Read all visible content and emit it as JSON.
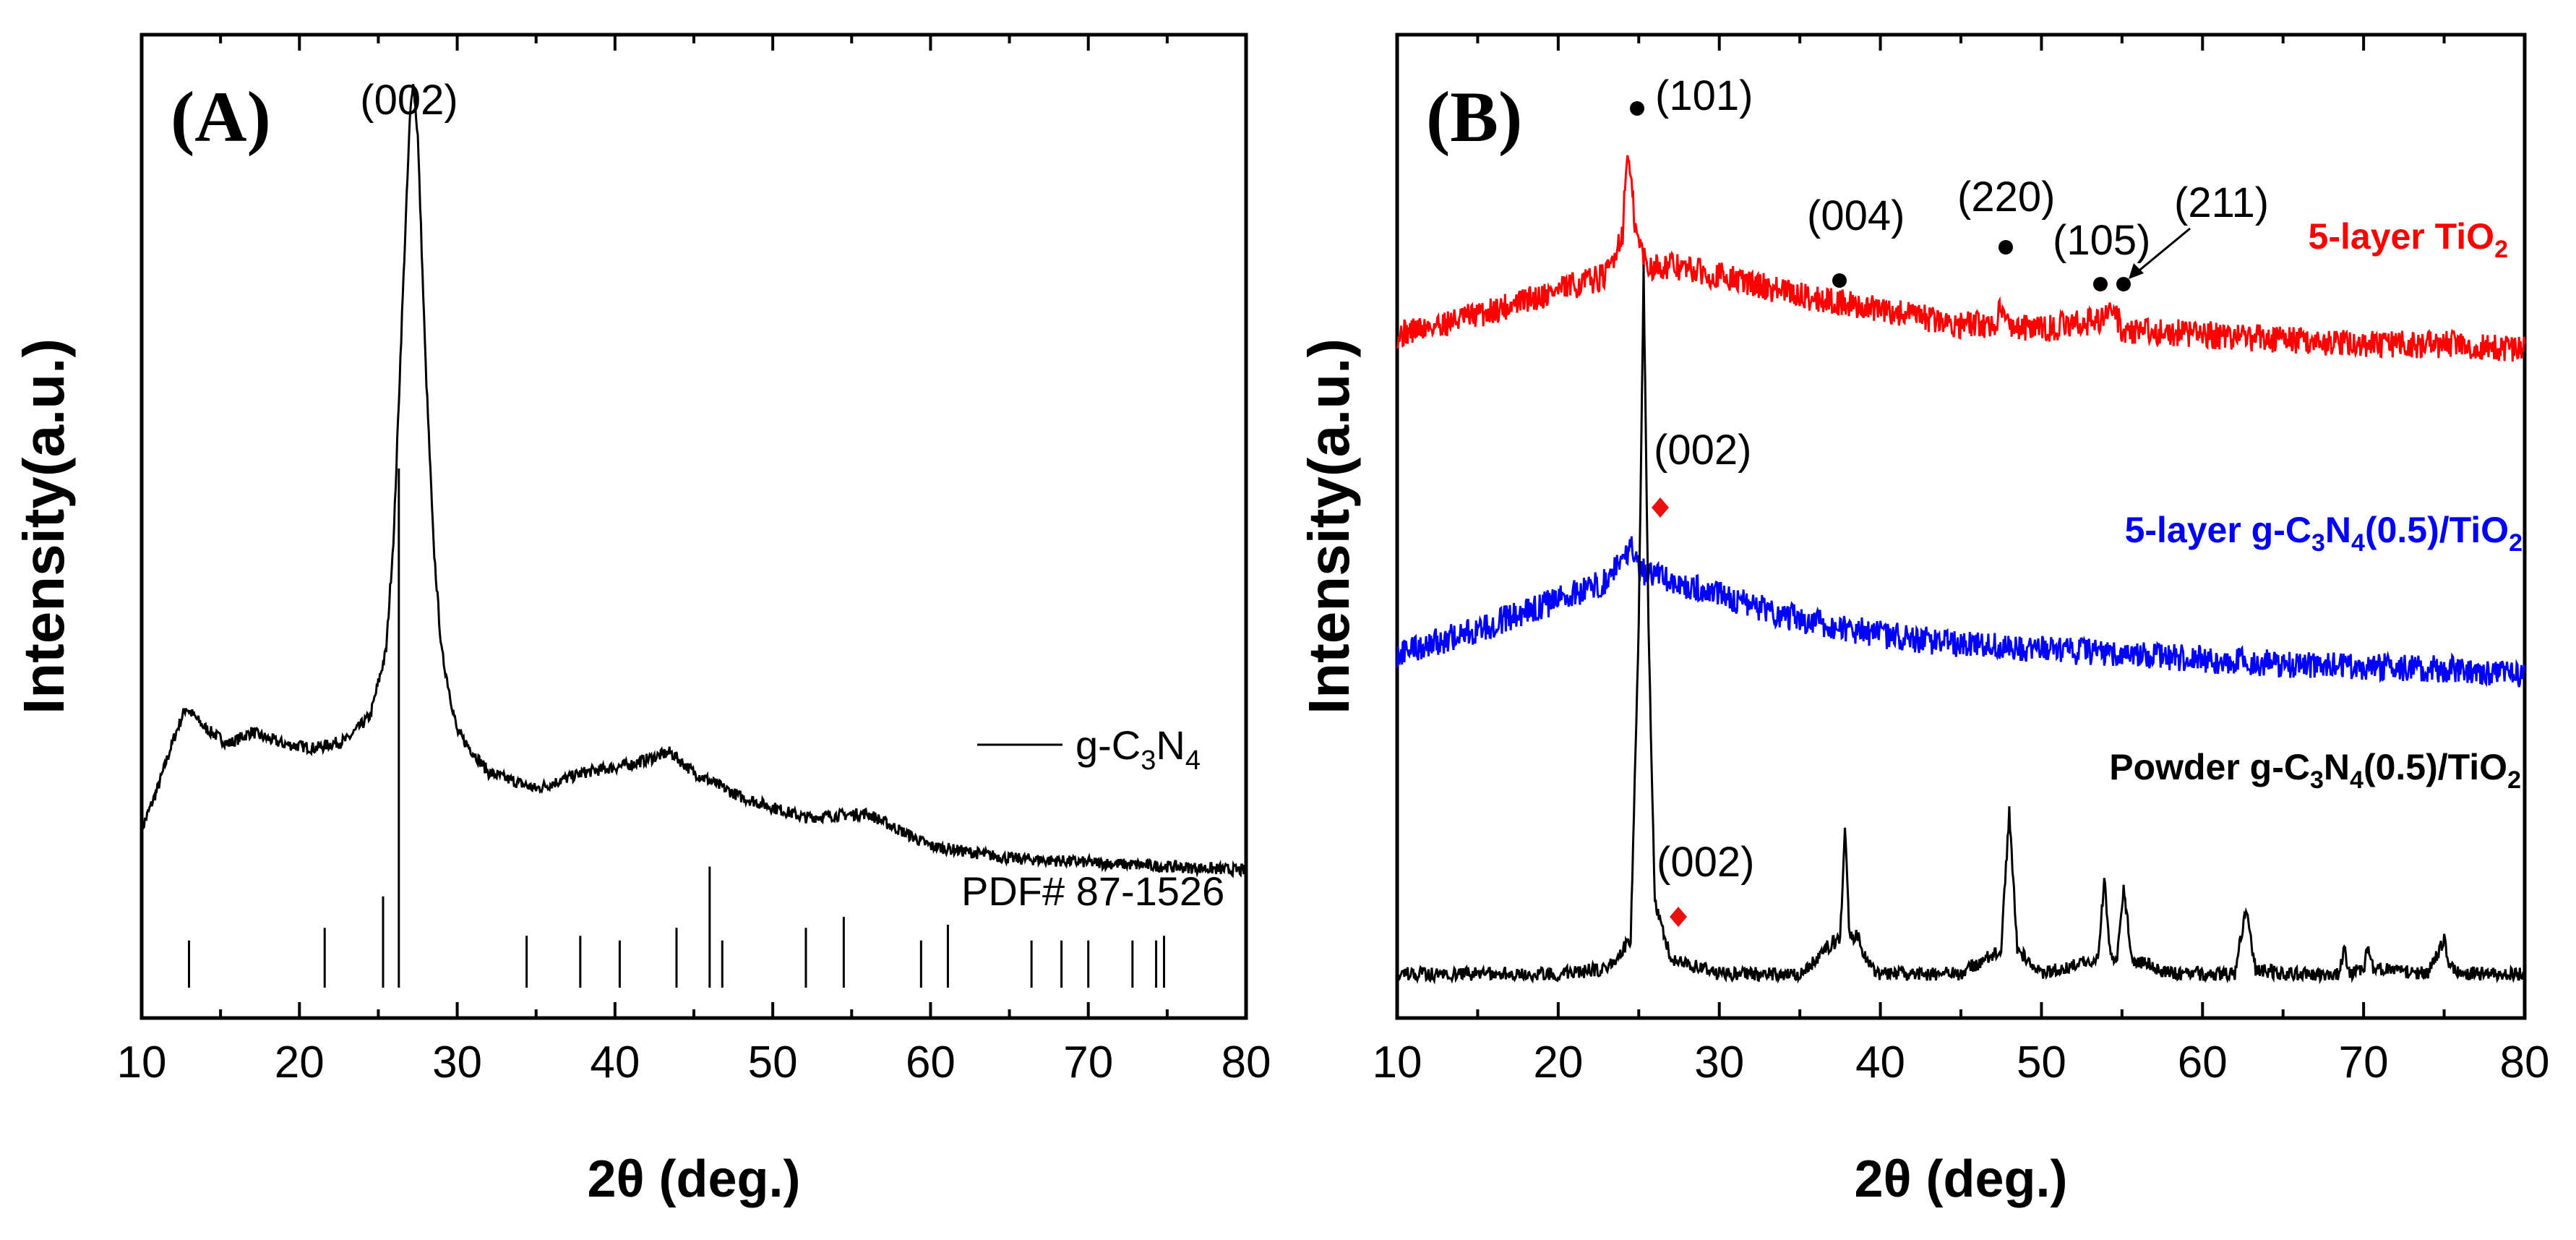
{
  "chart_data": [
    {
      "panel": "(A)",
      "type": "line",
      "xlabel": "2θ (deg.)",
      "ylabel": "Intensity(a.u.)",
      "xlim": [
        10,
        80
      ],
      "xticks": [
        "10",
        "20",
        "30",
        "40",
        "50",
        "60",
        "70",
        "80"
      ],
      "peak_label": "(002)",
      "legend": {
        "prefix": "g-C",
        "sub1": "3",
        "mid": "N",
        "sub2": "4"
      },
      "reference_label": "PDF# 87-1526",
      "series": [
        {
          "name": "g-C3N4",
          "color": "#000000",
          "x": [
            10,
            11,
            12,
            12.8,
            14,
            15.5,
            17,
            17.5,
            19,
            21,
            23,
            24.5,
            25.5,
            26,
            26.5,
            27,
            27.2,
            27.5,
            28,
            28.5,
            29,
            30,
            32,
            35,
            38,
            41,
            43.5,
            45,
            48,
            52,
            56,
            60,
            65,
            70,
            75,
            80
          ],
          "y": [
            0.05,
            0.1,
            0.16,
            0.2,
            0.175,
            0.155,
            0.17,
            0.165,
            0.155,
            0.15,
            0.16,
            0.19,
            0.27,
            0.42,
            0.68,
            0.92,
            0.97,
            0.9,
            0.62,
            0.4,
            0.27,
            0.17,
            0.12,
            0.1,
            0.12,
            0.13,
            0.145,
            0.12,
            0.09,
            0.065,
            0.07,
            0.03,
            0.015,
            0.01,
            0.005,
            0.0
          ]
        }
      ],
      "reference_sticks": [
        {
          "x": 13.0,
          "h": 0.03
        },
        {
          "x": 21.6,
          "h": 0.038
        },
        {
          "x": 25.3,
          "h": 0.058
        },
        {
          "x": 26.3,
          "h": 0.33
        },
        {
          "x": 34.4,
          "h": 0.033
        },
        {
          "x": 37.8,
          "h": 0.033
        },
        {
          "x": 40.3,
          "h": 0.03
        },
        {
          "x": 43.9,
          "h": 0.038
        },
        {
          "x": 46.0,
          "h": 0.077
        },
        {
          "x": 46.8,
          "h": 0.03
        },
        {
          "x": 52.1,
          "h": 0.038
        },
        {
          "x": 54.5,
          "h": 0.045
        },
        {
          "x": 59.4,
          "h": 0.03
        },
        {
          "x": 61.1,
          "h": 0.04
        },
        {
          "x": 66.4,
          "h": 0.03
        },
        {
          "x": 68.3,
          "h": 0.03
        },
        {
          "x": 70.0,
          "h": 0.03
        },
        {
          "x": 72.8,
          "h": 0.03
        },
        {
          "x": 74.3,
          "h": 0.03
        },
        {
          "x": 74.8,
          "h": 0.033
        }
      ]
    },
    {
      "panel": "(B)",
      "type": "line",
      "xlabel": "2θ (deg.)",
      "ylabel": "Intensity(a.u.)",
      "xlim": [
        10,
        80
      ],
      "xticks": [
        "10",
        "20",
        "30",
        "40",
        "50",
        "60",
        "70",
        "80"
      ],
      "series": [
        {
          "name": "5-layer TiO2",
          "label_main": "5-layer TiO",
          "label_sub": "2",
          "color": "#ff0000",
          "x": [
            10,
            15,
            20,
            23,
            24,
            24.3,
            24.8,
            25.5,
            27,
            30,
            35,
            40,
            45,
            47.2,
            47.5,
            47.8,
            50,
            53.5,
            54.5,
            55,
            60,
            65,
            70,
            75,
            80
          ],
          "y": [
            0.695,
            0.715,
            0.74,
            0.755,
            0.8,
            0.885,
            0.8,
            0.765,
            0.765,
            0.755,
            0.735,
            0.72,
            0.705,
            0.705,
            0.73,
            0.705,
            0.7,
            0.71,
            0.72,
            0.7,
            0.695,
            0.69,
            0.685,
            0.685,
            0.68
          ]
        },
        {
          "name": "5-layer g-C3N4(0.5)/TiO2",
          "label_main": "5-layer g-C",
          "label_sub1": "3",
          "label_mid": "N",
          "label_sub2": "4",
          "label_tail": "(0.5)/TiO",
          "label_sub3": "2",
          "color": "#0000ff",
          "x": [
            10,
            15,
            20,
            23,
            24,
            24.5,
            25,
            27,
            30,
            35,
            40,
            45,
            50,
            55,
            60,
            65,
            70,
            75,
            80
          ],
          "y": [
            0.37,
            0.395,
            0.425,
            0.445,
            0.47,
            0.48,
            0.455,
            0.445,
            0.43,
            0.405,
            0.39,
            0.38,
            0.375,
            0.37,
            0.365,
            0.36,
            0.358,
            0.355,
            0.35
          ]
        },
        {
          "name": "Powder g-C3N4(0.5)/TiO2",
          "label_main": "Powder g-C",
          "label_sub1": "3",
          "label_mid": "N",
          "label_sub2": "4",
          "label_tail": "(0.5)/TiO",
          "label_sub3": "2",
          "color": "#000000",
          "x": [
            10,
            15,
            20,
            23,
            24.5,
            25,
            25.3,
            25.6,
            26,
            27,
            30,
            35,
            36.9,
            37.5,
            37.8,
            38.1,
            38.6,
            39.2,
            40,
            45,
            47.5,
            48.0,
            48.5,
            50,
            53.5,
            53.9,
            54.3,
            54.7,
            55.1,
            55.6,
            58,
            62,
            62.7,
            63.3,
            65,
            68.5,
            68.8,
            69.1,
            70,
            70.3,
            70.6,
            74,
            75.0,
            75.4,
            76,
            80
          ],
          "y": [
            0.045,
            0.045,
            0.045,
            0.05,
            0.08,
            0.4,
            0.76,
            0.4,
            0.12,
            0.06,
            0.045,
            0.045,
            0.075,
            0.08,
            0.19,
            0.08,
            0.085,
            0.055,
            0.045,
            0.045,
            0.07,
            0.21,
            0.07,
            0.045,
            0.06,
            0.14,
            0.06,
            0.06,
            0.135,
            0.06,
            0.045,
            0.045,
            0.11,
            0.05,
            0.045,
            0.045,
            0.07,
            0.045,
            0.05,
            0.075,
            0.05,
            0.045,
            0.08,
            0.05,
            0.045,
            0.045
          ]
        }
      ],
      "annotations": [
        {
          "text": "(101)",
          "x": 25.3,
          "on": "5-layer TiO2"
        },
        {
          "text": "(004)",
          "x": 37.6,
          "on": "5-layer TiO2"
        },
        {
          "text": "(220)",
          "x": 47.8,
          "on": "5-layer TiO2"
        },
        {
          "text": "(105)",
          "x": 53.9,
          "on": "5-layer TiO2"
        },
        {
          "text": "(211)",
          "x": 55.1,
          "on": "5-layer TiO2"
        },
        {
          "text": "(002)",
          "x": 26.0,
          "on": "5-layer g-C3N4(0.5)/TiO2"
        },
        {
          "text": "(002)",
          "x": 27.3,
          "on": "Powder g-C3N4(0.5)/TiO2"
        }
      ]
    }
  ]
}
